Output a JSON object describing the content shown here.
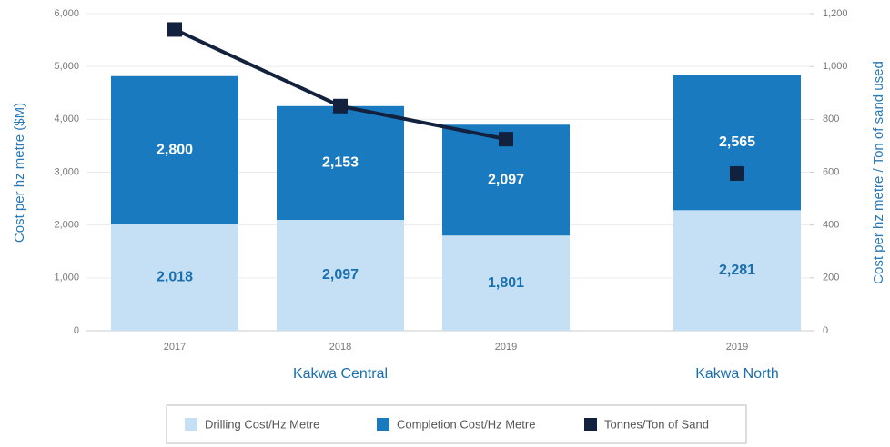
{
  "chart_data": {
    "type": "stacked-bar-line",
    "categories": [
      "2017",
      "2018",
      "2019",
      "2019"
    ],
    "groups": [
      {
        "name": "Kakwa Central",
        "size": 3
      },
      {
        "name": "Kakwa North",
        "size": 1
      }
    ],
    "series": [
      {
        "name": "Drilling Cost/Hz Metre",
        "color": "#c5e0f4",
        "label_color": "#1a6faf",
        "values": [
          2018,
          2097,
          1801,
          2281
        ],
        "value_labels": [
          "2,018",
          "2,097",
          "1,801",
          "2,281"
        ]
      },
      {
        "name": "Completion Cost/Hz Metre",
        "color": "#1a7abf",
        "label_color": "#ffffff",
        "values": [
          2800,
          2153,
          2097,
          2565
        ],
        "value_labels": [
          "2,800",
          "2,153",
          "2,097",
          "2,565"
        ]
      },
      {
        "name": "Tonnes/Ton of Sand",
        "color": "#12213d",
        "axis": "y2",
        "values": [
          1140,
          850,
          725,
          595
        ]
      }
    ],
    "ylabel": "Cost per hz metre ($M)",
    "y2label": "Cost per hz metre / Ton of sand used",
    "ylim": [
      0,
      6000
    ],
    "yticks": [
      0,
      {
        "value": 1000,
        "label": "1,000"
      },
      {
        "value": 2000,
        "label": "2,000"
      },
      {
        "value": 3000,
        "label": "3,000"
      },
      {
        "value": 4000,
        "label": "4,000"
      },
      {
        "value": 5000,
        "label": "5,000"
      },
      {
        "value": 6000,
        "label": "6,000"
      }
    ],
    "y2lim": [
      0,
      1200
    ],
    "y2ticks": [
      0,
      200,
      400,
      600,
      800,
      {
        "value": 1000,
        "label": "1,000"
      },
      {
        "value": 1200,
        "label": "1,200"
      }
    ],
    "grid": true,
    "legend": "bottom"
  }
}
